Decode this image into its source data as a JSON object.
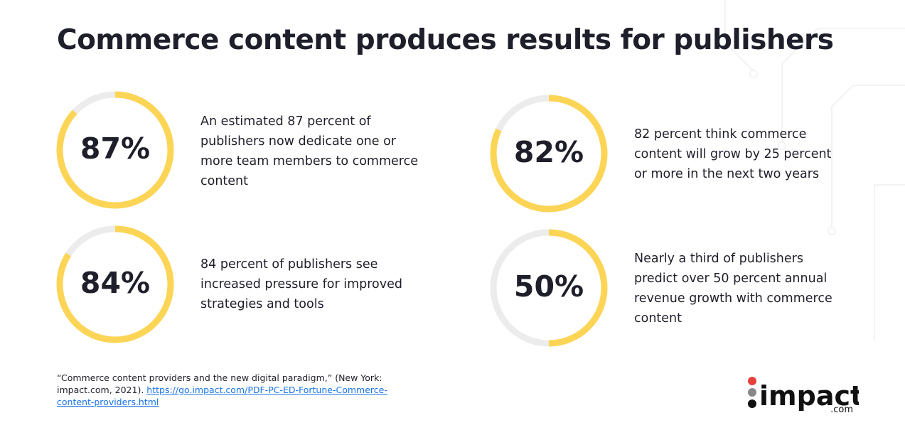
{
  "title": "Commerce content produces results for publishers",
  "stats": [
    {
      "value": 87,
      "label": "87%",
      "text": "An estimated 87 percent of publishers now dedicate one or more team members to commerce content"
    },
    {
      "value": 82,
      "label": "82%",
      "text": "82 percent think commerce content will grow by 25 percent or more in the next two years"
    },
    {
      "value": 84,
      "label": "84%",
      "text": "84 percent of publishers see increased pressure for improved strategies and tools"
    },
    {
      "value": 50,
      "label": "50%",
      "text": "Nearly a third of publishers predict over 50 percent annual revenue growth with commerce content"
    }
  ],
  "footnote": {
    "text": "“Commerce content providers and the new digital paradigm,” (New York: impact.com, 2021).",
    "link": "https://go.impact.com/PDF-PC-ED-Fortune-Commerce-content-providers.html"
  },
  "logo": {
    "name": "impact",
    "suffix": ".com"
  }
}
